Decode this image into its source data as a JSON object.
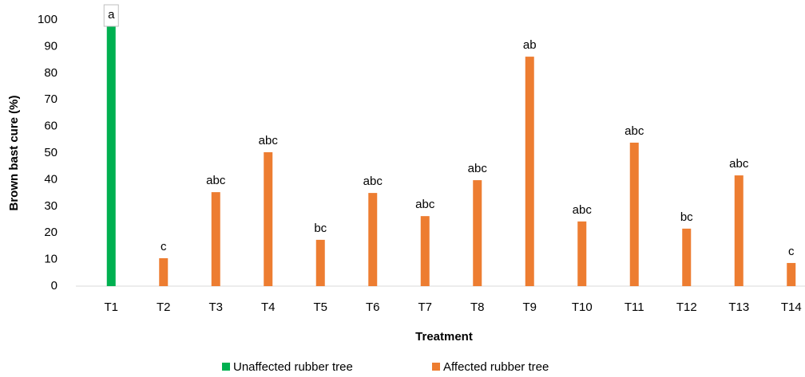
{
  "chart_data": {
    "type": "bar",
    "x_label": "Treatment",
    "y_label": "Brown bast cure (%)",
    "categories": [
      "T1",
      "T2",
      "T3",
      "T4",
      "T5",
      "T6",
      "T7",
      "T8",
      "T9",
      "T10",
      "T11",
      "T12",
      "T13",
      "T14"
    ],
    "series": [
      {
        "name": "Unaffected rubber tree",
        "color": "#00b050",
        "values": [
          98,
          null,
          null,
          null,
          null,
          null,
          null,
          null,
          null,
          null,
          null,
          null,
          null,
          null
        ]
      },
      {
        "name": "Affected rubber tree",
        "color": "#ed7d31",
        "values": [
          null,
          10.5,
          35.3,
          50.3,
          17.4,
          35,
          26.3,
          39.8,
          86.2,
          24.3,
          53.9,
          21.6,
          41.6,
          8.7
        ]
      }
    ],
    "annotations": [
      "a",
      "c",
      "abc",
      "abc",
      "bc",
      "abc",
      "abc",
      "abc",
      "ab",
      "abc",
      "abc",
      "bc",
      "abc",
      "c"
    ],
    "ylim": [
      0,
      100
    ],
    "yticks": [
      0,
      10,
      20,
      30,
      40,
      50,
      60,
      70,
      80,
      90,
      100
    ],
    "grid": false,
    "legend": "bottom"
  }
}
